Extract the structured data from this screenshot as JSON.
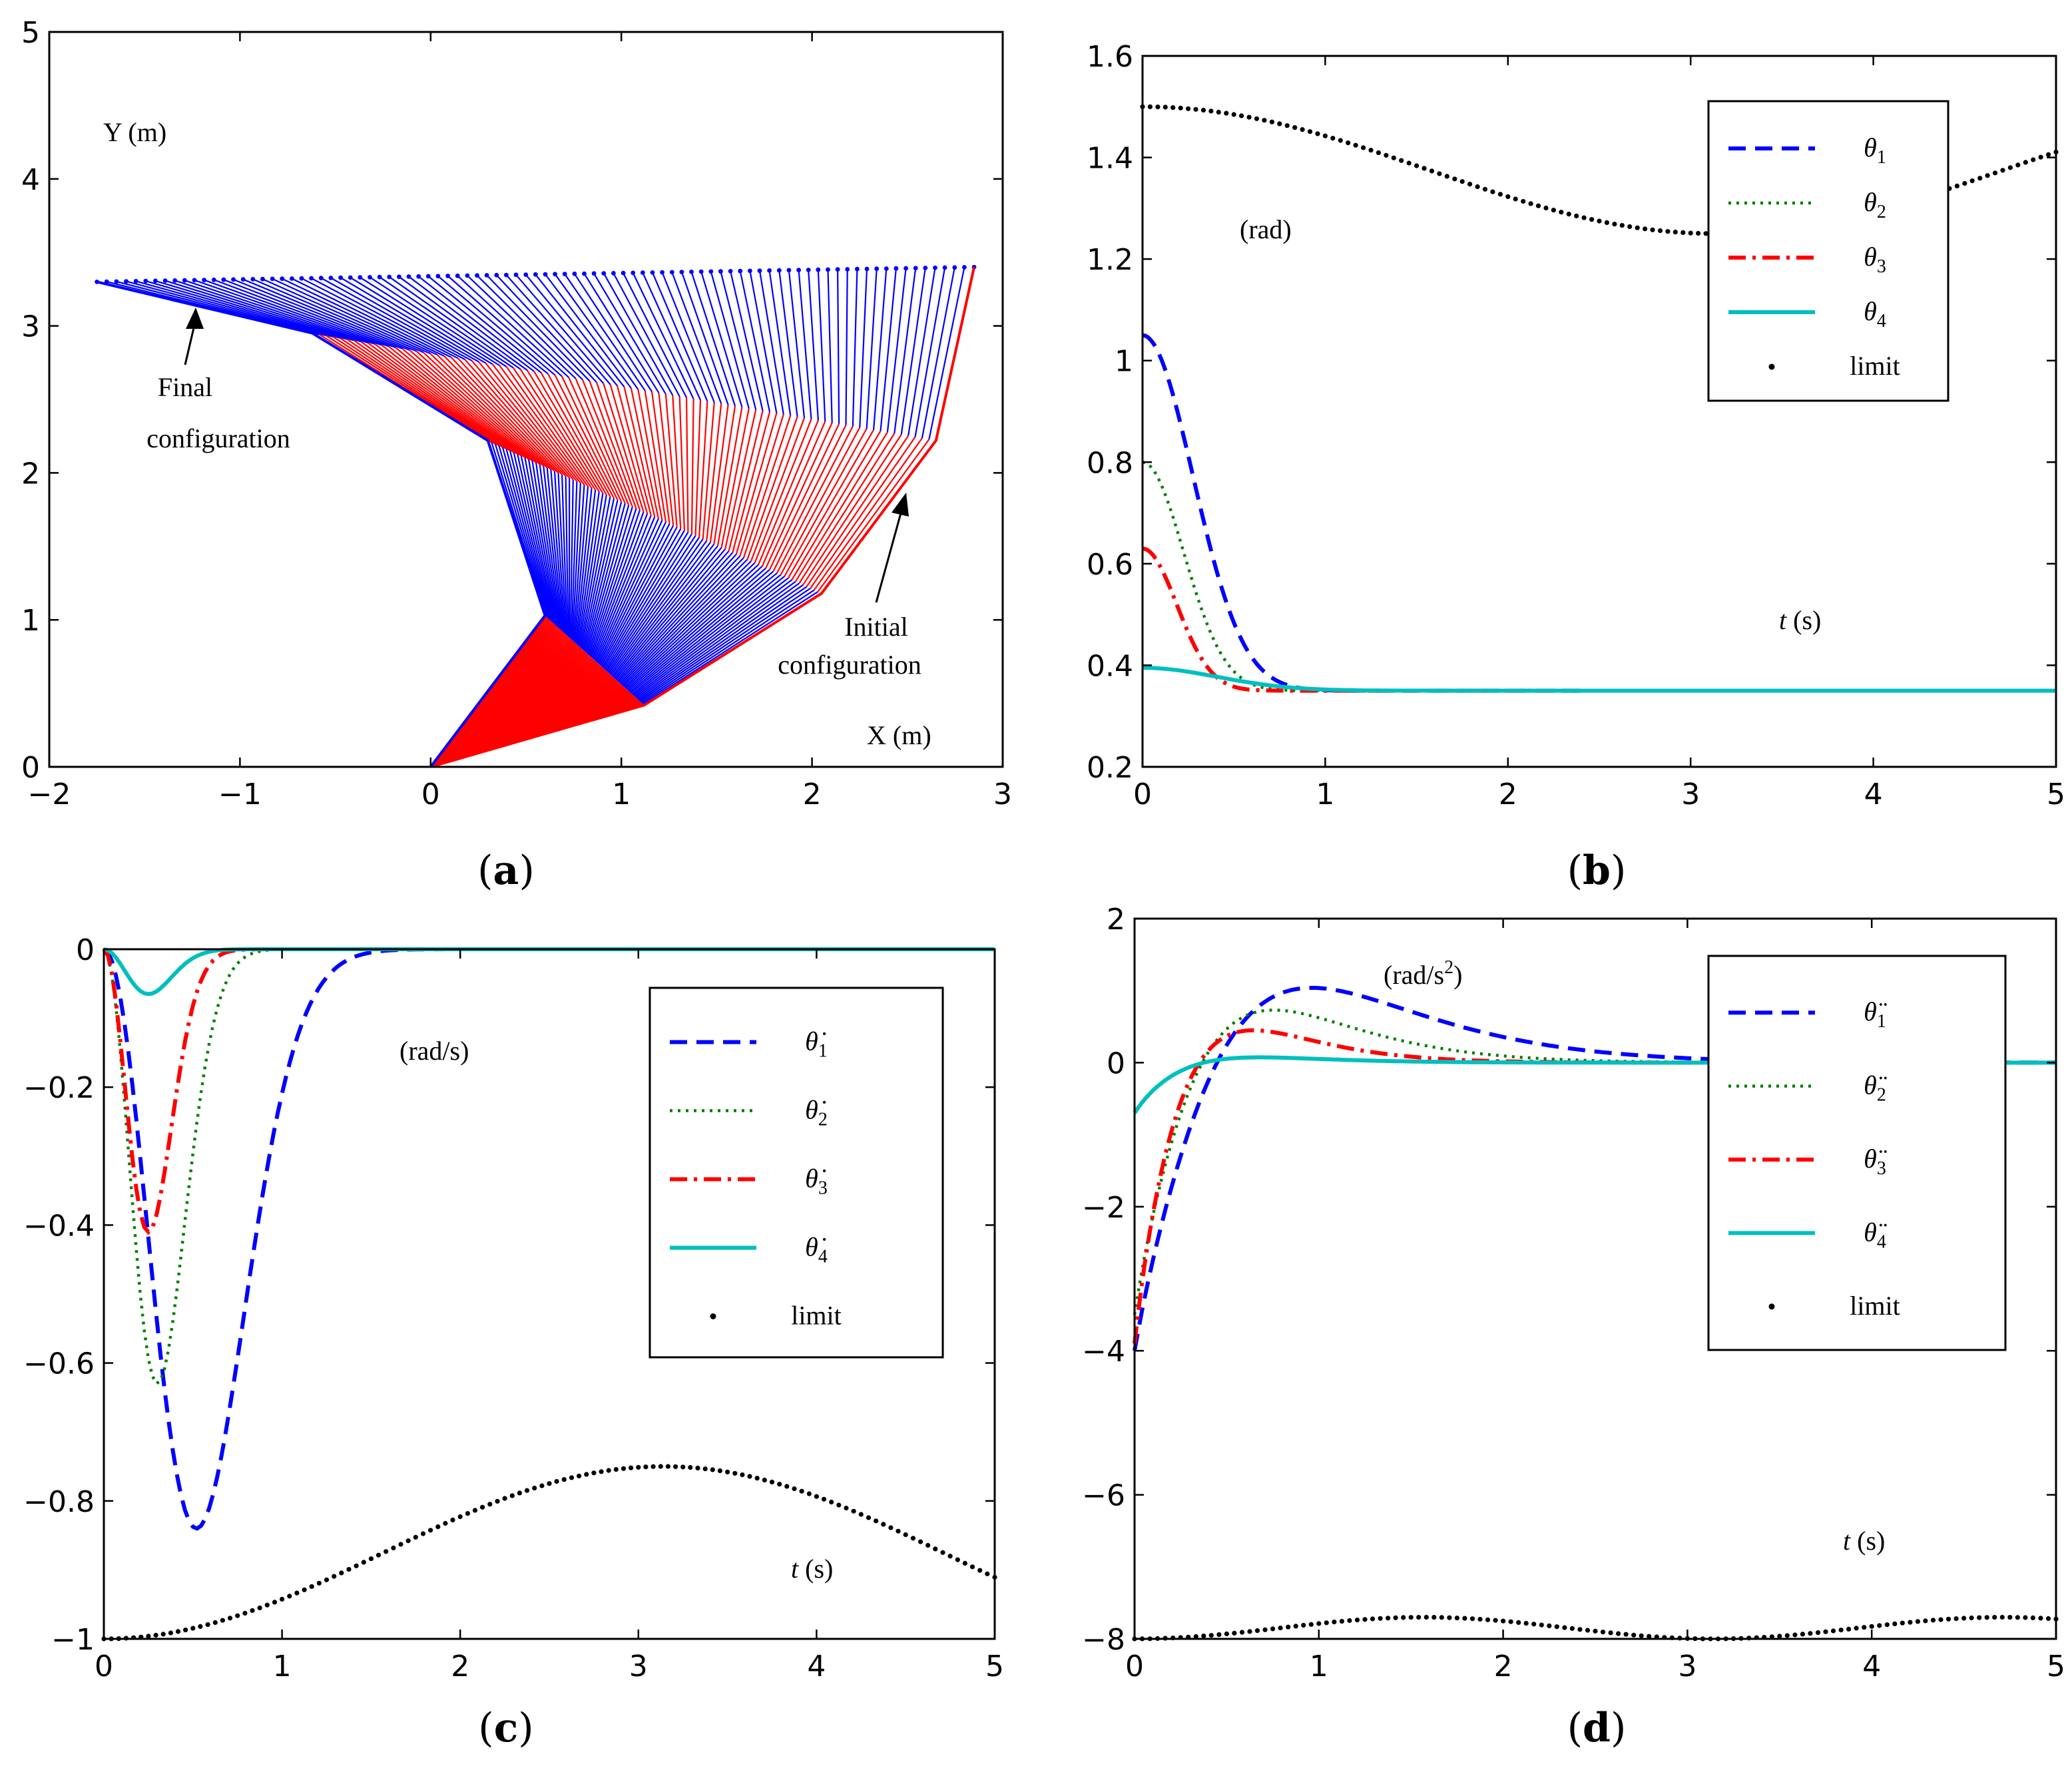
{
  "colors": {
    "blue": "#0000ff",
    "green": "#007f00",
    "red": "#ff0000",
    "cyan": "#00bfbf",
    "black": "#000000"
  },
  "chart_data": [
    {
      "panel": "a",
      "type": "line",
      "caption_letter": "a",
      "xlabel": "X (m)",
      "ylabel": "Y (m)",
      "xlim": [
        -2,
        3
      ],
      "ylim": [
        0,
        5
      ],
      "xticks": [
        "−2",
        "−1",
        "0",
        "1",
        "2",
        "3"
      ],
      "yticks": [
        "0",
        "1",
        "2",
        "3",
        "4",
        "5"
      ],
      "annotations": {
        "final": [
          "Final",
          "configuration"
        ],
        "initial": [
          "Initial",
          "configuration"
        ]
      },
      "frames": 90,
      "series": [
        {
          "name": "initial configuration",
          "points": [
            [
              0,
              0
            ],
            [
              1.12,
              0.42
            ],
            [
              2.05,
              1.18
            ],
            [
              2.65,
              2.22
            ],
            [
              2.85,
              3.4
            ]
          ]
        },
        {
          "name": "final configuration",
          "points": [
            [
              0,
              0
            ],
            [
              0.6,
              1.03
            ],
            [
              0.3,
              2.22
            ],
            [
              -0.62,
              2.95
            ],
            [
              -1.75,
              3.3
            ]
          ]
        }
      ]
    },
    {
      "panel": "b",
      "type": "line",
      "caption_letter": "b",
      "unit": "(rad)",
      "xlabel_var": "t",
      "xlabel_unit": " (s)",
      "xlim": [
        0,
        5
      ],
      "ylim": [
        0.2,
        1.6
      ],
      "xticks": [
        "0",
        "1",
        "2",
        "3",
        "4",
        "5"
      ],
      "yticks": [
        "0.2",
        "0.4",
        "0.6",
        "0.8",
        "1",
        "1.2",
        "1.4",
        "1.6"
      ],
      "legend": {
        "sym": "θ",
        "subs": [
          "1",
          "2",
          "3",
          "4"
        ],
        "limit": "limit"
      },
      "series": [
        {
          "name": "theta1",
          "start": 1.05,
          "end": 0.35,
          "tau": 0.55,
          "k": 4
        },
        {
          "name": "theta2",
          "start": 0.8,
          "end": 0.35,
          "tau": 0.45,
          "k": 4
        },
        {
          "name": "theta3",
          "start": 0.63,
          "end": 0.35,
          "tau": 0.35,
          "k": 3.5
        },
        {
          "name": "theta4",
          "start": 0.395,
          "end": 0.35,
          "tau": 0.5,
          "k": 1.5
        },
        {
          "name": "limit",
          "mean": 1.375,
          "amp": 0.125,
          "period": 6.28
        }
      ]
    },
    {
      "panel": "c",
      "type": "line",
      "caption_letter": "c",
      "unit": "(rad/s)",
      "xlabel_var": "t",
      "xlabel_unit": " (s)",
      "xlim": [
        0,
        5
      ],
      "ylim": [
        -1,
        0
      ],
      "xticks": [
        "0",
        "1",
        "2",
        "3",
        "4",
        "5"
      ],
      "yticks": [
        "−1",
        "−0.8",
        "−0.6",
        "−0.4",
        "−0.2",
        "0"
      ],
      "legend": {
        "sym": "θ̇",
        "subs": [
          "1",
          "2",
          "3",
          "4"
        ],
        "limit": "limit"
      },
      "series": [
        {
          "name": "dtheta1",
          "min": -0.84,
          "tmin": 0.52
        },
        {
          "name": "dtheta2",
          "min": -0.63,
          "tmin": 0.3
        },
        {
          "name": "dtheta3",
          "min": -0.41,
          "tmin": 0.25
        },
        {
          "name": "dtheta4",
          "min": -0.065,
          "tmin": 0.25
        },
        {
          "name": "limit",
          "mean": -0.875,
          "amp": 0.125,
          "period": 6.28
        }
      ]
    },
    {
      "panel": "d",
      "type": "line",
      "caption_letter": "d",
      "unit_pre": "(rad/s",
      "unit_sup": "2",
      "unit_post": ")",
      "xlabel_var": "t",
      "xlabel_unit": " (s)",
      "xlim": [
        0,
        5
      ],
      "ylim": [
        -8,
        2
      ],
      "xticks": [
        "0",
        "1",
        "2",
        "3",
        "4",
        "5"
      ],
      "yticks": [
        "−8",
        "−6",
        "−4",
        "−2",
        "0",
        "2"
      ],
      "legend": {
        "sym": "θ̈",
        "subs": [
          "1",
          "2",
          "3",
          "4"
        ],
        "limit": "limit"
      },
      "series": [
        {
          "name": "ddtheta1",
          "start": -4.0,
          "peak": 1.25,
          "tpeak": 0.78
        },
        {
          "name": "ddtheta2",
          "start": -3.5,
          "peak": 0.9,
          "tpeak": 0.6
        },
        {
          "name": "ddtheta3",
          "start": -3.9,
          "peak": 0.6,
          "tpeak": 0.48
        },
        {
          "name": "ddtheta4",
          "start": -0.7,
          "peak": 0.1,
          "tpeak": 0.5
        },
        {
          "name": "limit",
          "mean": -7.85,
          "amp": 0.15,
          "period": 3.14
        }
      ]
    }
  ]
}
